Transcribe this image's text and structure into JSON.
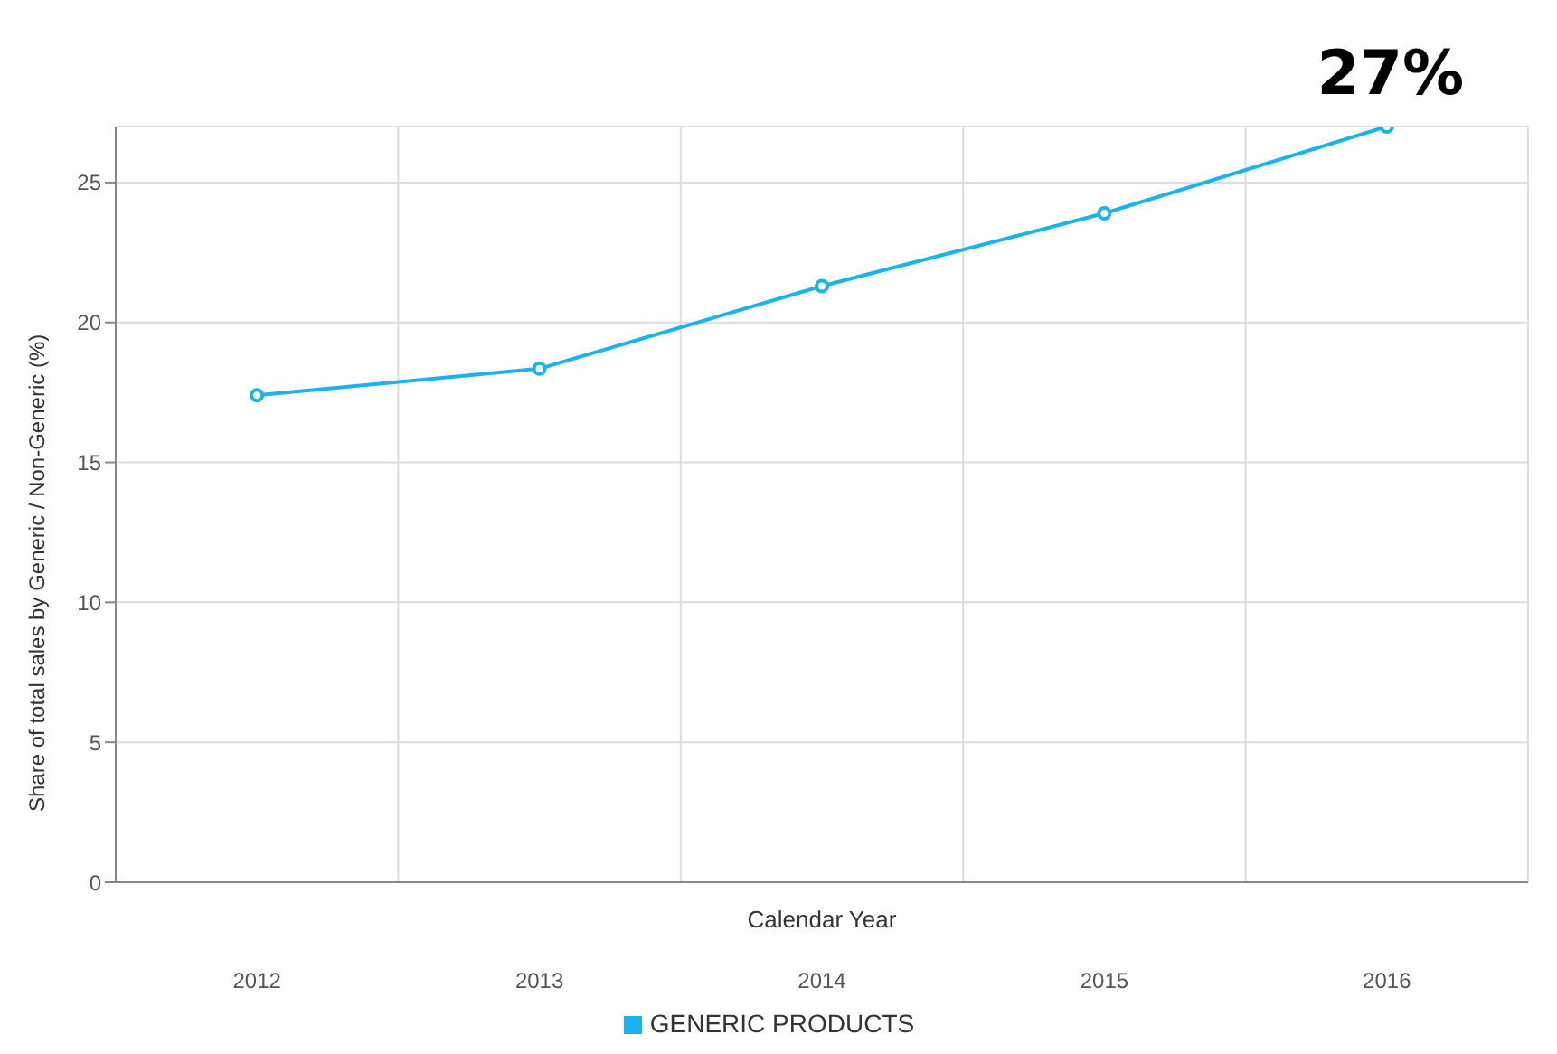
{
  "chart_data": {
    "type": "line",
    "xlabel": "Calendar Year",
    "ylabel": "Share of total sales by Generic / Non-Generic (%)",
    "categories": [
      "2012",
      "2013",
      "2014",
      "2015",
      "2016"
    ],
    "series": [
      {
        "name": "GENERIC PRODUCTS",
        "color": "#1ab2ef",
        "values": [
          17.4,
          18.35,
          21.3,
          23.9,
          27.0
        ]
      }
    ],
    "annotations": [
      {
        "text": "27%",
        "x": "2016",
        "y": 27
      }
    ],
    "ylim": [
      0,
      27
    ],
    "yticks": [
      0,
      5,
      10,
      15,
      20,
      25
    ],
    "grid": true,
    "legend": "bottom",
    "marker": "circle",
    "line_style": "solid"
  }
}
